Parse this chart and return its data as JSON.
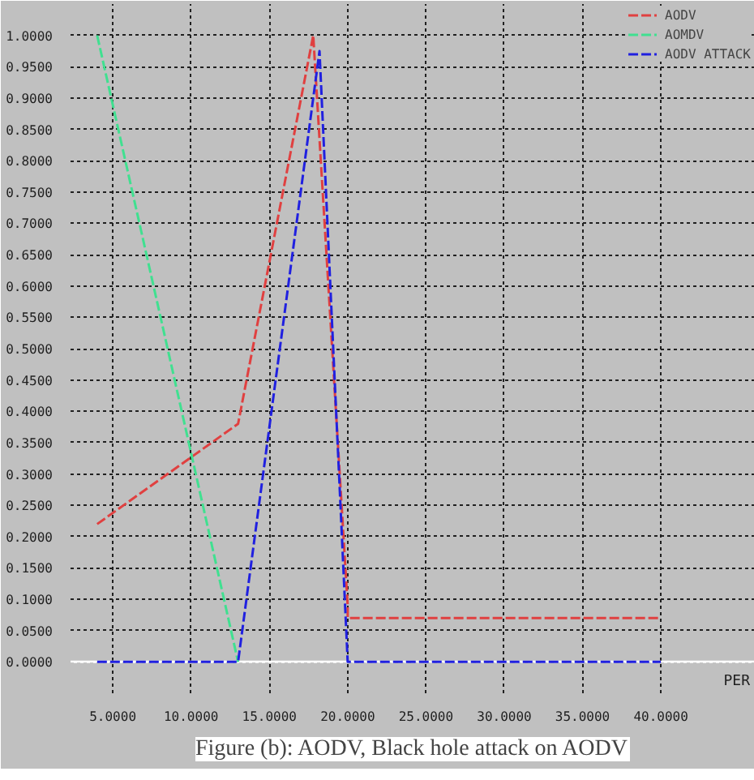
{
  "chart_data": {
    "type": "line",
    "xlabel": "PER",
    "annotations": [
      "Figure (b): AODV, Black hole attack on AODV"
    ],
    "xlim": [
      2.3,
      46
    ],
    "ylim": [
      -0.05,
      1.05
    ],
    "xticks": [
      {
        "value": 5,
        "label": "5.0000"
      },
      {
        "value": 10,
        "label": "10.0000"
      },
      {
        "value": 15,
        "label": "15.0000"
      },
      {
        "value": 20,
        "label": "20.0000"
      },
      {
        "value": 25,
        "label": "25.0000"
      },
      {
        "value": 30,
        "label": "30.0000"
      },
      {
        "value": 35,
        "label": "35.0000"
      },
      {
        "value": 40,
        "label": "40.0000"
      }
    ],
    "yticks": [
      {
        "value": 0,
        "label": "0.0000"
      },
      {
        "value": 0.05,
        "label": "0.0500"
      },
      {
        "value": 0.1,
        "label": "0.1000"
      },
      {
        "value": 0.15,
        "label": "0.1500"
      },
      {
        "value": 0.2,
        "label": "0.2000"
      },
      {
        "value": 0.25,
        "label": "0.2500"
      },
      {
        "value": 0.3,
        "label": "0.3000"
      },
      {
        "value": 0.35,
        "label": "0.3500"
      },
      {
        "value": 0.4,
        "label": "0.4000"
      },
      {
        "value": 0.45,
        "label": "0.4500"
      },
      {
        "value": 0.5,
        "label": "0.5000"
      },
      {
        "value": 0.55,
        "label": "0.5500"
      },
      {
        "value": 0.6,
        "label": "0.6000"
      },
      {
        "value": 0.65,
        "label": "0.6500"
      },
      {
        "value": 0.7,
        "label": "0.7000"
      },
      {
        "value": 0.75,
        "label": "0.7500"
      },
      {
        "value": 0.8,
        "label": "0.8000"
      },
      {
        "value": 0.85,
        "label": "0.8500"
      },
      {
        "value": 0.9,
        "label": "0.9000"
      },
      {
        "value": 0.95,
        "label": "0.9500"
      },
      {
        "value": 1,
        "label": "1.0000"
      }
    ],
    "grid": true,
    "legend": "top right",
    "line_style": "dashed",
    "series": [
      {
        "name": "AODV",
        "color": "#e04040",
        "x": [
          4,
          13,
          17.8,
          20,
          20,
          40
        ],
        "values": [
          0.22,
          0.38,
          1.0,
          0.09,
          0.07,
          0.07
        ]
      },
      {
        "name": "AOMDV",
        "color": "#40e090",
        "x": [
          4,
          13
        ],
        "values": [
          1.0,
          0.0
        ]
      },
      {
        "name": "AODV ATTACK",
        "color": "#2020e0",
        "x": [
          4,
          13,
          18.2,
          20,
          40
        ],
        "values": [
          0.0,
          0.0,
          0.975,
          0.0,
          0.0
        ]
      }
    ]
  }
}
